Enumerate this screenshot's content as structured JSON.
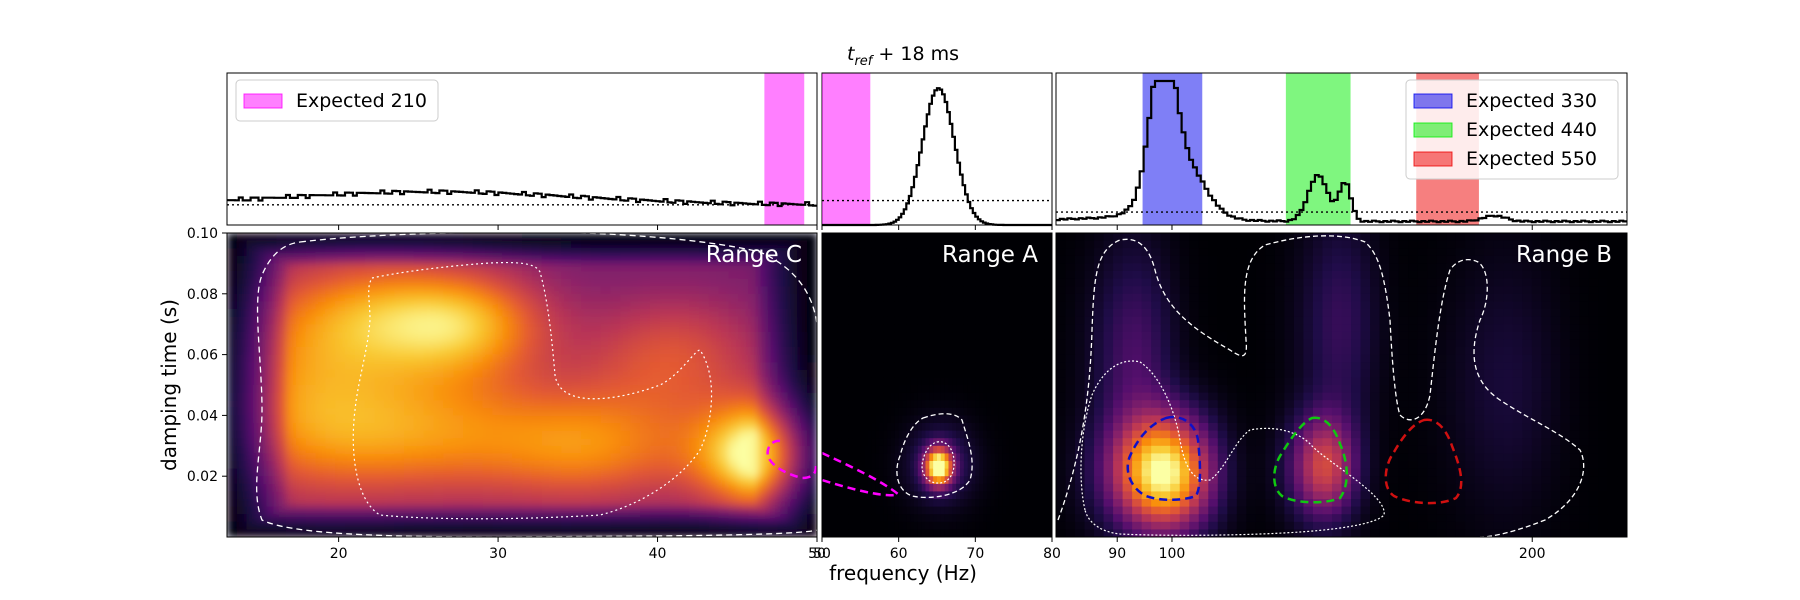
{
  "chart_data": {
    "type": "heatmap",
    "title": "t_ref + 18 ms",
    "title_main": "t",
    "title_sub": "ref",
    "title_rest": " + 18 ms",
    "xlabel": "frequency (Hz)",
    "ylabel": "damping time (s)",
    "ylim": [
      0.0,
      0.1
    ],
    "yticks": [
      "0.02",
      "0.04",
      "0.06",
      "0.08",
      "0.10"
    ],
    "colormap": "inferno",
    "panels": [
      {
        "id": "C",
        "label": "Range C",
        "xlim": [
          13,
          50
        ],
        "xticks": [
          20,
          30,
          40,
          50
        ],
        "xtick_labels": [
          "20",
          "30",
          "40",
          "50"
        ],
        "legend": [
          {
            "label": "Expected 210",
            "color": "#ff00ff"
          }
        ],
        "expected_bands": [
          {
            "from": 46.7,
            "to": 49.2,
            "color": "#ff00ff"
          }
        ],
        "hist_baseline_level": 0.14,
        "density_blobs": [
          {
            "x": 47.0,
            "y": 0.027,
            "sx": 3.0,
            "sy": 0.012,
            "a": 1.0
          },
          {
            "x": 23.0,
            "y": 0.072,
            "sx": 4.5,
            "sy": 0.014,
            "a": 0.55
          },
          {
            "x": 28.5,
            "y": 0.07,
            "sx": 3.5,
            "sy": 0.012,
            "a": 0.45
          },
          {
            "x": 24.0,
            "y": 0.035,
            "sx": 6.0,
            "sy": 0.016,
            "a": 0.55
          },
          {
            "x": 36.0,
            "y": 0.03,
            "sx": 5.0,
            "sy": 0.014,
            "a": 0.5
          },
          {
            "x": 41.0,
            "y": 0.06,
            "sx": 4.0,
            "sy": 0.014,
            "a": 0.35
          },
          {
            "x": 17.0,
            "y": 0.05,
            "sx": 4.0,
            "sy": 0.025,
            "a": 0.35
          }
        ],
        "density_floor": 0.33
      },
      {
        "id": "A",
        "label": "Range A",
        "xlim": [
          50,
          80
        ],
        "xticks": [
          50,
          60,
          70,
          80
        ],
        "xtick_labels": [
          "50",
          "60",
          "70",
          "80"
        ],
        "legend": [],
        "expected_bands": [
          {
            "from": 50,
            "to": 56.3,
            "color": "#ff00ff"
          }
        ],
        "hist_baseline_level": 0.17,
        "density_blobs": [
          {
            "x": 65.2,
            "y": 0.023,
            "sx": 1.2,
            "sy": 0.0042,
            "a": 1.0
          },
          {
            "x": 65.5,
            "y": 0.024,
            "sx": 3.0,
            "sy": 0.009,
            "a": 0.22
          }
        ],
        "density_floor": 0.0
      },
      {
        "id": "B",
        "label": "Range B",
        "xlim": [
          80,
          240
        ],
        "xscale": "log",
        "xticks": [
          90,
          100,
          200
        ],
        "xtick_labels": [
          "90",
          "100",
          "200"
        ],
        "legend": [
          {
            "label": "Expected 330",
            "color": "#0000ee"
          },
          {
            "label": "Expected 440",
            "color": "#00ee00"
          },
          {
            "label": "Expected 550",
            "color": "#ee0000"
          }
        ],
        "expected_bands": [
          {
            "from": 94.5,
            "to": 106,
            "color": "#0000ee"
          },
          {
            "from": 124.5,
            "to": 141,
            "color": "#00ee00"
          },
          {
            "from": 160,
            "to": 180.5,
            "color": "#ee0000"
          }
        ],
        "hist_baseline_level": 0.09,
        "density_blobs": [
          {
            "x": 98.5,
            "y": 0.021,
            "sx": 6.5,
            "sy": 0.013,
            "a": 1.0
          },
          {
            "x": 134.0,
            "y": 0.023,
            "sx": 6.0,
            "sy": 0.012,
            "a": 0.55
          },
          {
            "x": 93.0,
            "y": 0.06,
            "sx": 5.0,
            "sy": 0.025,
            "a": 0.22
          },
          {
            "x": 138.0,
            "y": 0.07,
            "sx": 7.0,
            "sy": 0.025,
            "a": 0.18
          },
          {
            "x": 190.0,
            "y": 0.05,
            "sx": 14.0,
            "sy": 0.03,
            "a": 0.1
          }
        ],
        "density_floor": 0.0
      }
    ]
  }
}
